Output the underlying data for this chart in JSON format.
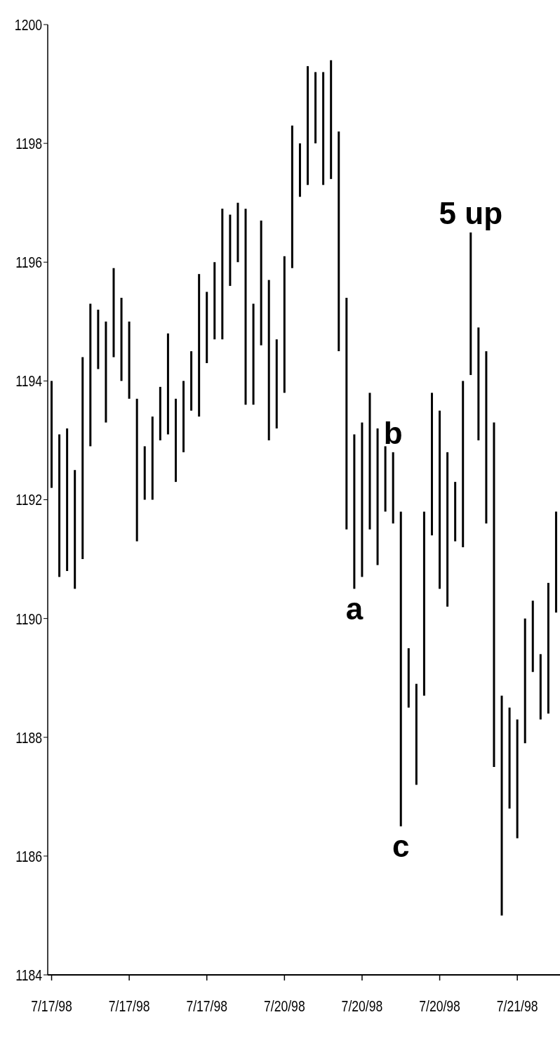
{
  "chart_data": {
    "type": "bar",
    "color": "#000000",
    "categories": [
      "7/17/98",
      null,
      null,
      null,
      null,
      null,
      null,
      null,
      null,
      null,
      "7/17/98",
      null,
      null,
      null,
      null,
      null,
      null,
      null,
      null,
      null,
      "7/17/98",
      null,
      null,
      null,
      null,
      null,
      null,
      null,
      null,
      null,
      "7/20/98",
      null,
      null,
      null,
      null,
      null,
      null,
      null,
      null,
      null,
      "7/20/98",
      null,
      null,
      null,
      null,
      null,
      null,
      null,
      null,
      null,
      "7/20/98",
      null,
      null,
      null,
      null,
      null,
      null,
      null,
      null,
      null,
      "7/21/98",
      null,
      null,
      null,
      null,
      null
    ],
    "base": [
      1192.2,
      1190.7,
      1190.8,
      1190.5,
      1191.0,
      1192.9,
      1194.2,
      1193.3,
      1194.4,
      1194.0,
      1193.7,
      1191.3,
      1192.0,
      1192.0,
      1193.0,
      1193.1,
      1192.3,
      1192.8,
      1193.5,
      1193.4,
      1194.3,
      1194.7,
      1194.7,
      1195.6,
      1196.0,
      1193.6,
      1193.6,
      1194.6,
      1193.0,
      1193.2,
      1193.8,
      1195.9,
      1197.1,
      1197.3,
      1198.0,
      1197.3,
      1197.4,
      1194.5,
      1191.5,
      1190.5,
      1190.7,
      1191.5,
      1190.9,
      1191.8,
      1191.6,
      1186.5,
      1188.5,
      1187.2,
      1188.7,
      1191.4,
      1190.5,
      1190.2,
      1191.3,
      1191.2,
      1194.1,
      1193.0,
      1191.6,
      1187.5,
      1185.0,
      1186.8,
      1186.3,
      1187.9,
      1189.1,
      1188.3,
      1188.4,
      1190.1
    ],
    "values": [
      1.8,
      2.4,
      2.4,
      2.0,
      3.4,
      2.4,
      1.0,
      1.7,
      1.5,
      1.4,
      1.3,
      2.4,
      0.9,
      1.4,
      0.9,
      1.7,
      1.4,
      1.2,
      1.0,
      2.4,
      1.2,
      1.3,
      2.2,
      1.2,
      1.0,
      3.3,
      1.7,
      2.1,
      2.7,
      1.5,
      2.3,
      2.4,
      0.9,
      2.0,
      1.2,
      1.9,
      2.0,
      3.7,
      3.9,
      2.6,
      2.6,
      2.3,
      2.3,
      1.1,
      1.2,
      5.3,
      1.0,
      1.7,
      3.1,
      2.4,
      3.0,
      2.6,
      1.0,
      2.8,
      2.4,
      1.9,
      2.9,
      5.8,
      3.7,
      1.7,
      2.0,
      2.1,
      1.2,
      1.1,
      2.2,
      1.7
    ],
    "ylim": [
      1184,
      1200
    ],
    "yticks": [
      1184,
      1186,
      1188,
      1190,
      1192,
      1194,
      1196,
      1198,
      1200
    ],
    "annotations": [
      {
        "text": "a",
        "y": 1190.5
      },
      {
        "text": "b",
        "y": 1192.8
      },
      {
        "text": "c",
        "y": 1186.5
      },
      {
        "text": "5 up",
        "y": 1196.5
      }
    ]
  }
}
